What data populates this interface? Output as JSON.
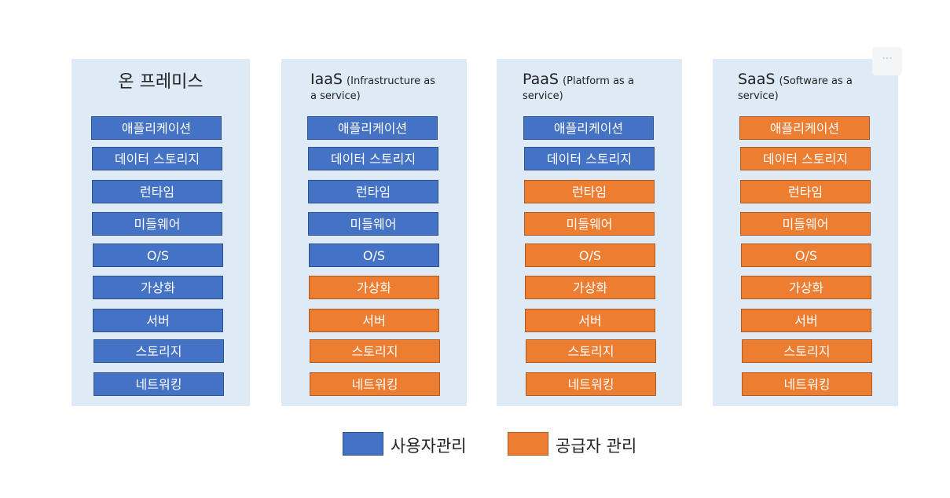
{
  "columns": [
    {
      "title": "온 프레미스",
      "layers": [
        {
          "label": "애플리케이션",
          "managed_by": "user"
        },
        {
          "label": "데이터 스토리지",
          "managed_by": "user"
        },
        {
          "label": "런타임",
          "managed_by": "user"
        },
        {
          "label": "미들웨어",
          "managed_by": "user"
        },
        {
          "label": "O/S",
          "managed_by": "user"
        },
        {
          "label": "가상화",
          "managed_by": "user"
        },
        {
          "label": "서버",
          "managed_by": "user"
        },
        {
          "label": "스토리지",
          "managed_by": "user"
        },
        {
          "label": "네트워킹",
          "managed_by": "user"
        }
      ]
    },
    {
      "title_main": "IaaS",
      "title_sub_line1": "(Infrastructure as",
      "title_sub_line2": "a service)",
      "layers": [
        {
          "label": "애플리케이션",
          "managed_by": "user"
        },
        {
          "label": "데이터 스토리지",
          "managed_by": "user"
        },
        {
          "label": "런타임",
          "managed_by": "user"
        },
        {
          "label": "미들웨어",
          "managed_by": "user"
        },
        {
          "label": "O/S",
          "managed_by": "user"
        },
        {
          "label": "가상화",
          "managed_by": "provider"
        },
        {
          "label": "서버",
          "managed_by": "provider"
        },
        {
          "label": "스토리지",
          "managed_by": "provider"
        },
        {
          "label": "네트워킹",
          "managed_by": "provider"
        }
      ]
    },
    {
      "title_main": "PaaS",
      "title_sub_line1": "(Platform as a",
      "title_sub_line2": "service)",
      "layers": [
        {
          "label": "애플리케이션",
          "managed_by": "user"
        },
        {
          "label": "데이터 스토리지",
          "managed_by": "user"
        },
        {
          "label": "런타임",
          "managed_by": "provider"
        },
        {
          "label": "미들웨어",
          "managed_by": "provider"
        },
        {
          "label": "O/S",
          "managed_by": "provider"
        },
        {
          "label": "가상화",
          "managed_by": "provider"
        },
        {
          "label": "서버",
          "managed_by": "provider"
        },
        {
          "label": "스토리지",
          "managed_by": "provider"
        },
        {
          "label": "네트워킹",
          "managed_by": "provider"
        }
      ]
    },
    {
      "title_main": "SaaS",
      "title_sub_line1": "(Software as a",
      "title_sub_line2": "service)",
      "layers": [
        {
          "label": "애플리케이션",
          "managed_by": "provider"
        },
        {
          "label": "데이터 스토리지",
          "managed_by": "provider"
        },
        {
          "label": "런타임",
          "managed_by": "provider"
        },
        {
          "label": "미들웨어",
          "managed_by": "provider"
        },
        {
          "label": "O/S",
          "managed_by": "provider"
        },
        {
          "label": "가상화",
          "managed_by": "provider"
        },
        {
          "label": "서버",
          "managed_by": "provider"
        },
        {
          "label": "스토리지",
          "managed_by": "provider"
        },
        {
          "label": "네트워킹",
          "managed_by": "provider"
        }
      ]
    }
  ],
  "legend": {
    "user_label": "사용자관리",
    "provider_label": "공급자 관리"
  },
  "colors": {
    "user": "#4472c4",
    "provider": "#ed7d31",
    "panel": "#deebf7"
  },
  "more_icon": "more-horizontal-icon"
}
